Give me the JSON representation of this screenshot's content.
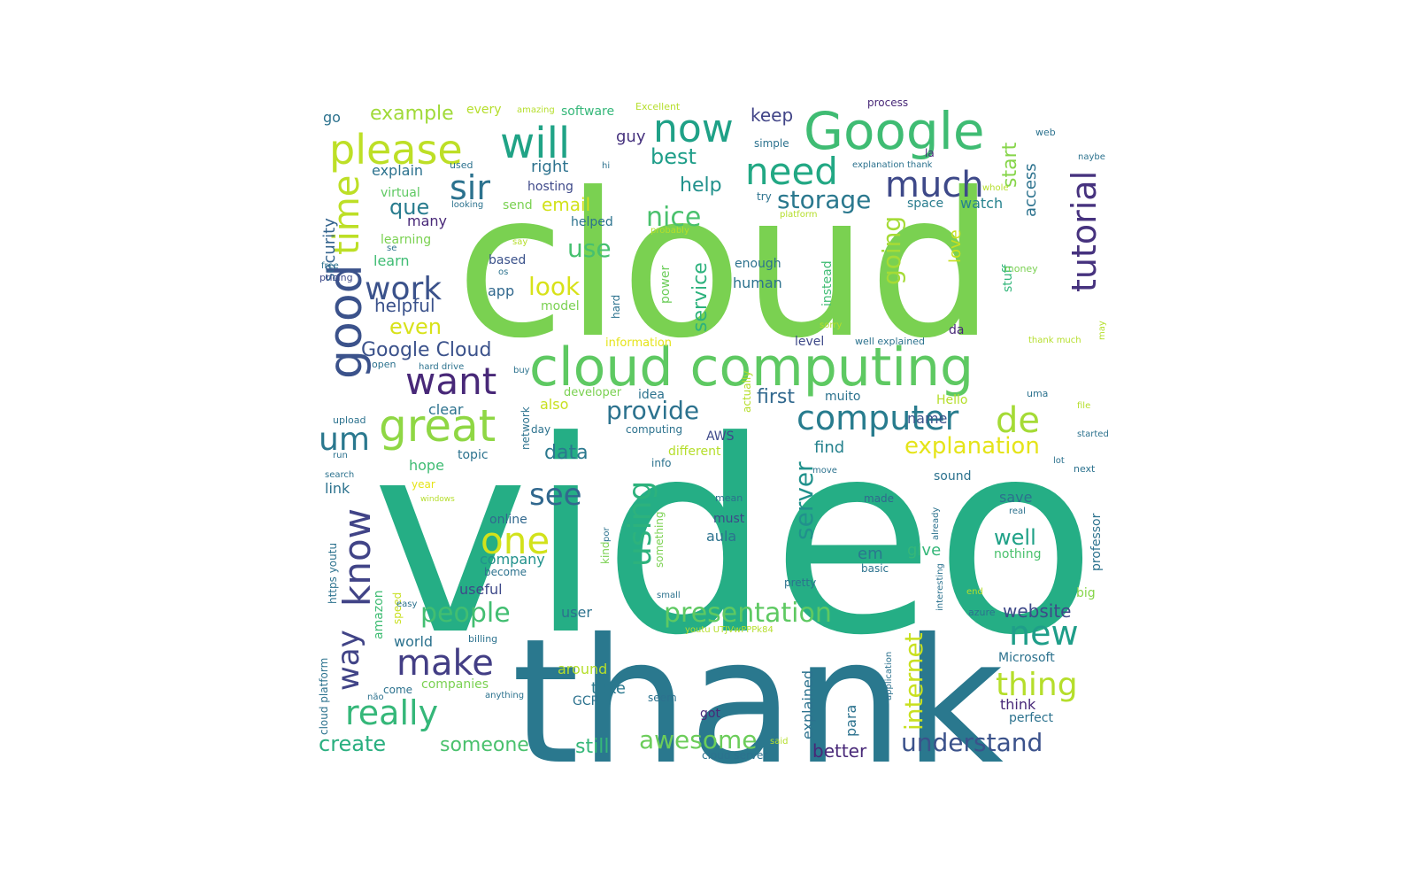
{
  "wordcloud": {
    "words": [
      {
        "text": "video",
        "color": "#25ae85"
      },
      {
        "text": "cloud",
        "color": "#7ad151"
      },
      {
        "text": "thank",
        "color": "#2a788e"
      },
      {
        "text": "cloud computing",
        "color": "#5ec962"
      },
      {
        "text": "Google",
        "color": "#3fbc73"
      },
      {
        "text": "please",
        "color": "#bddf26"
      },
      {
        "text": "will",
        "color": "#20a386"
      },
      {
        "text": "now",
        "color": "#1fa187"
      },
      {
        "text": "good",
        "color": "#3b528b"
      },
      {
        "text": "time",
        "color": "#bddf26"
      },
      {
        "text": "need",
        "color": "#22a884"
      },
      {
        "text": "much",
        "color": "#3e4989"
      },
      {
        "text": "sir",
        "color": "#2c728e"
      },
      {
        "text": "tutorial",
        "color": "#46327e"
      },
      {
        "text": "great",
        "color": "#8fd744"
      },
      {
        "text": "want",
        "color": "#482878"
      },
      {
        "text": "computer",
        "color": "#287c8e"
      },
      {
        "text": "de",
        "color": "#a5db36"
      },
      {
        "text": "um",
        "color": "#2a788e"
      },
      {
        "text": "work",
        "color": "#3b528b"
      },
      {
        "text": "know",
        "color": "#414487"
      },
      {
        "text": "one",
        "color": "#d2e21b"
      },
      {
        "text": "make",
        "color": "#433e85"
      },
      {
        "text": "really",
        "color": "#35b779"
      },
      {
        "text": "thing",
        "color": "#b5de2b"
      },
      {
        "text": "new",
        "color": "#1f9e89"
      },
      {
        "text": "presentation",
        "color": "#5ec962"
      },
      {
        "text": "using",
        "color": "#2db27d"
      },
      {
        "text": "see",
        "color": "#31688e"
      },
      {
        "text": "storage",
        "color": "#2a788e"
      },
      {
        "text": "nice",
        "color": "#4ac16d"
      },
      {
        "text": "way",
        "color": "#414487"
      },
      {
        "text": "provide",
        "color": "#2c728e"
      },
      {
        "text": "explanation",
        "color": "#e5e419"
      },
      {
        "text": "understand",
        "color": "#3b528b"
      },
      {
        "text": "people",
        "color": "#42be71"
      },
      {
        "text": "awesome",
        "color": "#6ccd5a"
      },
      {
        "text": "internet",
        "color": "#c8e020"
      },
      {
        "text": "server",
        "color": "#21918c"
      },
      {
        "text": "going",
        "color": "#a5db36"
      },
      {
        "text": "look",
        "color": "#d8e219"
      },
      {
        "text": "use",
        "color": "#46c06f"
      },
      {
        "text": "Google Cloud",
        "color": "#3b528b"
      },
      {
        "text": "que",
        "color": "#287c8e"
      },
      {
        "text": "help",
        "color": "#21918c"
      },
      {
        "text": "best",
        "color": "#1f9e89"
      },
      {
        "text": "first",
        "color": "#31688e"
      },
      {
        "text": "website",
        "color": "#3e4989"
      },
      {
        "text": "service",
        "color": "#2db27d"
      },
      {
        "text": "even",
        "color": "#d8e219"
      },
      {
        "text": "example",
        "color": "#a0da39"
      },
      {
        "text": "create",
        "color": "#29af7f"
      },
      {
        "text": "someone",
        "color": "#4ac16d"
      },
      {
        "text": "still",
        "color": "#35b779"
      },
      {
        "text": "better",
        "color": "#482878"
      },
      {
        "text": "well",
        "color": "#1fa187"
      },
      {
        "text": "data",
        "color": "#2a788e"
      },
      {
        "text": "email",
        "color": "#d2e21b"
      },
      {
        "text": "start",
        "color": "#86d549"
      },
      {
        "text": "access",
        "color": "#2c728e"
      },
      {
        "text": "watch",
        "color": "#26828e"
      },
      {
        "text": "keep",
        "color": "#414487"
      },
      {
        "text": "security",
        "color": "#33638d"
      },
      {
        "text": "helpful",
        "color": "#3b528b"
      },
      {
        "text": "go",
        "color": "#2c728e"
      },
      {
        "text": "explain",
        "color": "#2c728e"
      },
      {
        "text": "right",
        "color": "#2c728e"
      },
      {
        "text": "guy",
        "color": "#46327e"
      },
      {
        "text": "hosting",
        "color": "#3e4989"
      },
      {
        "text": "many",
        "color": "#482878"
      },
      {
        "text": "learning",
        "color": "#7ad151"
      },
      {
        "text": "learn",
        "color": "#3fbc73"
      },
      {
        "text": "virtual",
        "color": "#5ec962"
      },
      {
        "text": "software",
        "color": "#35b779"
      },
      {
        "text": "every",
        "color": "#b5de2b"
      },
      {
        "text": "love",
        "color": "#c8e020"
      },
      {
        "text": "stuff",
        "color": "#32b67a"
      },
      {
        "text": "space",
        "color": "#287c8e"
      },
      {
        "text": "app",
        "color": "#31688e"
      },
      {
        "text": "based",
        "color": "#3b528b"
      },
      {
        "text": "human",
        "color": "#2c728e"
      },
      {
        "text": "enough",
        "color": "#2c728e"
      },
      {
        "text": "model",
        "color": "#7ad151"
      },
      {
        "text": "power",
        "color": "#6ccd5a"
      },
      {
        "text": "instead",
        "color": "#3fbc73"
      },
      {
        "text": "level",
        "color": "#3e4989"
      },
      {
        "text": "da",
        "color": "#482878"
      },
      {
        "text": "name",
        "color": "#3b528b"
      },
      {
        "text": "find",
        "color": "#26828e"
      },
      {
        "text": "also",
        "color": "#c8e020"
      },
      {
        "text": "clear",
        "color": "#2c728e"
      },
      {
        "text": "day",
        "color": "#2c728e"
      },
      {
        "text": "AWS",
        "color": "#3e4989"
      },
      {
        "text": "different",
        "color": "#b5de2b"
      },
      {
        "text": "idea",
        "color": "#2c728e"
      },
      {
        "text": "muito",
        "color": "#2c728e"
      },
      {
        "text": "Hello",
        "color": "#b5de2b"
      },
      {
        "text": "hope",
        "color": "#3fbc73"
      },
      {
        "text": "topic",
        "color": "#2c728e"
      },
      {
        "text": "link",
        "color": "#2c728e"
      },
      {
        "text": "year",
        "color": "#e5e419"
      },
      {
        "text": "online",
        "color": "#31688e"
      },
      {
        "text": "company",
        "color": "#21918c"
      },
      {
        "text": "useful",
        "color": "#3e4989"
      },
      {
        "text": "aula",
        "color": "#2c728e"
      },
      {
        "text": "must",
        "color": "#3e4989"
      },
      {
        "text": "em",
        "color": "#2a788e"
      },
      {
        "text": "give",
        "color": "#35b779"
      },
      {
        "text": "sound",
        "color": "#2c728e"
      },
      {
        "text": "made",
        "color": "#31688e"
      },
      {
        "text": "save",
        "color": "#2c728e"
      },
      {
        "text": "nothing",
        "color": "#4ac16d"
      },
      {
        "text": "professor",
        "color": "#2c728e"
      },
      {
        "text": "basic",
        "color": "#2c728e"
      },
      {
        "text": "https youtu",
        "color": "#2c728e"
      },
      {
        "text": "amazon",
        "color": "#3fbc73"
      },
      {
        "text": "speed",
        "color": "#c8e020"
      },
      {
        "text": "world",
        "color": "#2c728e"
      },
      {
        "text": "user",
        "color": "#2c728e"
      },
      {
        "text": "around",
        "color": "#b5de2b"
      },
      {
        "text": "take",
        "color": "#2a788e"
      },
      {
        "text": "companies",
        "color": "#7ad151"
      },
      {
        "text": "Microsoft",
        "color": "#2c728e"
      },
      {
        "text": "think",
        "color": "#482878"
      },
      {
        "text": "perfect",
        "color": "#2c728e"
      },
      {
        "text": "explained",
        "color": "#2c728e"
      },
      {
        "text": "para",
        "color": "#2c728e"
      },
      {
        "text": "got",
        "color": "#482878"
      },
      {
        "text": "GCP",
        "color": "#2c728e"
      },
      {
        "text": "cloud platform",
        "color": "#2c728e"
      },
      {
        "text": "come",
        "color": "#2c728e"
      },
      {
        "text": "big",
        "color": "#86d549"
      },
      {
        "text": "pretty",
        "color": "#2c728e"
      },
      {
        "text": "amazing",
        "color": "#b5de2b"
      },
      {
        "text": "Excellent",
        "color": "#b5de2b"
      },
      {
        "text": "process",
        "color": "#482878"
      },
      {
        "text": "simple",
        "color": "#2c728e"
      },
      {
        "text": "hi",
        "color": "#2c728e"
      },
      {
        "text": "la",
        "color": "#482878"
      },
      {
        "text": "web",
        "color": "#2c728e"
      },
      {
        "text": "naybe",
        "color": "#2c728e"
      },
      {
        "text": "explanation thank",
        "color": "#2c728e"
      },
      {
        "text": "whole",
        "color": "#b5de2b"
      },
      {
        "text": "used",
        "color": "#2c728e"
      },
      {
        "text": "looking",
        "color": "#2c728e"
      },
      {
        "text": "send",
        "color": "#7ad151"
      },
      {
        "text": "helped",
        "color": "#2c728e"
      },
      {
        "text": "try",
        "color": "#2c728e"
      },
      {
        "text": "platform",
        "color": "#b5de2b"
      },
      {
        "text": "probably",
        "color": "#b5de2b"
      },
      {
        "text": "say",
        "color": "#b5de2b"
      },
      {
        "text": "se",
        "color": "#2c728e"
      },
      {
        "text": "os",
        "color": "#2c728e"
      },
      {
        "text": "free",
        "color": "#2c728e"
      },
      {
        "text": "pricing",
        "color": "#3e4989"
      },
      {
        "text": "money",
        "color": "#7ad151"
      },
      {
        "text": "hard",
        "color": "#2c728e"
      },
      {
        "text": "information",
        "color": "#e5e419"
      },
      {
        "text": "well explained",
        "color": "#2c728e"
      },
      {
        "text": "thank much",
        "color": "#b5de2b"
      },
      {
        "text": "may",
        "color": "#b5de2b"
      },
      {
        "text": "sorry",
        "color": "#b5de2b"
      },
      {
        "text": "open",
        "color": "#2c728e"
      },
      {
        "text": "hard drive",
        "color": "#2c728e"
      },
      {
        "text": "buy",
        "color": "#2c728e"
      },
      {
        "text": "developer",
        "color": "#7ad151"
      },
      {
        "text": "actually",
        "color": "#b5de2b"
      },
      {
        "text": "uma",
        "color": "#2c728e"
      },
      {
        "text": "file",
        "color": "#b5de2b"
      },
      {
        "text": "started",
        "color": "#2c728e"
      },
      {
        "text": "upload",
        "color": "#2c728e"
      },
      {
        "text": "run",
        "color": "#2c728e"
      },
      {
        "text": "network",
        "color": "#2c728e"
      },
      {
        "text": "computing",
        "color": "#2c728e"
      },
      {
        "text": "info",
        "color": "#2c728e"
      },
      {
        "text": "search",
        "color": "#2c728e"
      },
      {
        "text": "lot",
        "color": "#2c728e"
      },
      {
        "text": "next",
        "color": "#2c728e"
      },
      {
        "text": "move",
        "color": "#2c728e"
      },
      {
        "text": "real",
        "color": "#2c728e"
      },
      {
        "text": "windows",
        "color": "#b5de2b"
      },
      {
        "text": "mean",
        "color": "#2c728e"
      },
      {
        "text": "already",
        "color": "#2c728e"
      },
      {
        "text": "something",
        "color": "#7ad151"
      },
      {
        "text": "kind",
        "color": "#7ad151"
      },
      {
        "text": "por",
        "color": "#2c728e"
      },
      {
        "text": "become",
        "color": "#2c728e"
      },
      {
        "text": "interesting",
        "color": "#2c728e"
      },
      {
        "text": "small",
        "color": "#2c728e"
      },
      {
        "text": "end",
        "color": "#b5de2b"
      },
      {
        "text": "azure",
        "color": "#2c728e"
      },
      {
        "text": "easy",
        "color": "#2c728e"
      },
      {
        "text": "youtu UTJVwPPPk84",
        "color": "#b5de2b"
      },
      {
        "text": "billing",
        "color": "#2c728e"
      },
      {
        "text": "não",
        "color": "#2c728e"
      },
      {
        "text": "anything",
        "color": "#2c728e"
      },
      {
        "text": "seem",
        "color": "#2c728e"
      },
      {
        "text": "application",
        "color": "#2c728e"
      },
      {
        "text": "said",
        "color": "#b5de2b"
      },
      {
        "text": "cloud server",
        "color": "#2c728e"
      }
    ]
  }
}
